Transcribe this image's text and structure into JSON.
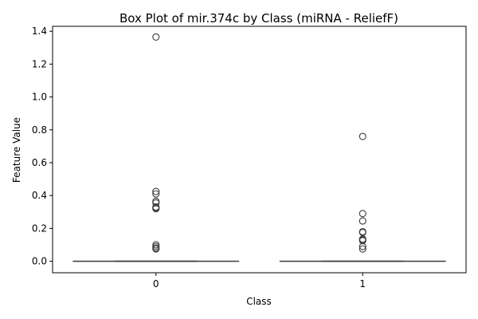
{
  "chart_data": {
    "type": "box",
    "title": "Box Plot of mir.374c by Class (miRNA - ReliefF)",
    "xlabel": "Class",
    "ylabel": "Feature Value",
    "categories": [
      "0",
      "1"
    ],
    "ylim": [
      -0.07,
      1.43
    ],
    "yticks": [
      0.0,
      0.2,
      0.4,
      0.6,
      0.8,
      1.0,
      1.2,
      1.4
    ],
    "ytick_labels": [
      "0.0",
      "0.2",
      "0.4",
      "0.6",
      "0.8",
      "1.0",
      "1.2",
      "1.4"
    ],
    "grid": false,
    "boxes": [
      {
        "category": "0",
        "whisker_low": 0.0,
        "q1": 0.0,
        "median": 0.0,
        "q3": 0.0,
        "whisker_high": 0.0,
        "fliers": [
          1.365,
          0.425,
          0.41,
          0.365,
          0.355,
          0.33,
          0.325,
          0.32,
          0.1,
          0.09,
          0.08,
          0.075
        ]
      },
      {
        "category": "1",
        "whisker_low": 0.0,
        "q1": 0.0,
        "median": 0.0,
        "q3": 0.0,
        "whisker_high": 0.0,
        "fliers": [
          0.76,
          0.29,
          0.245,
          0.18,
          0.175,
          0.135,
          0.13,
          0.125,
          0.09,
          0.075
        ]
      }
    ],
    "colors": {
      "outline": "#3d3d3d",
      "box_fill": "#ffffff"
    }
  }
}
